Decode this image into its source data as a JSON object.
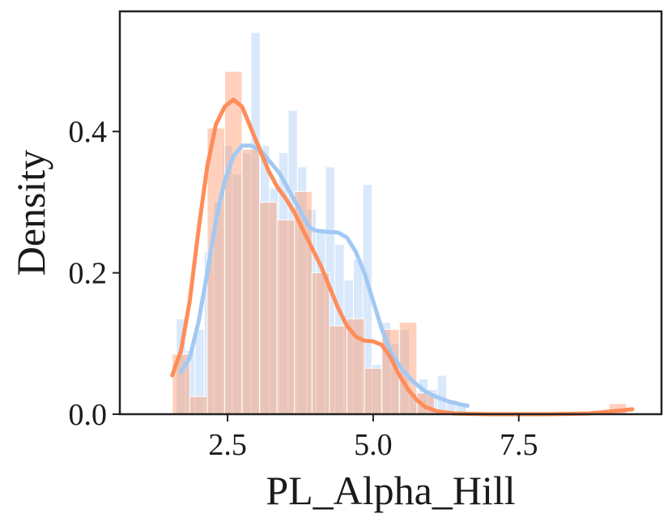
{
  "chart_data": {
    "type": "histogram",
    "title": "",
    "xlabel": "PL_Alpha_Hill",
    "ylabel": "Density",
    "xlim": [
      0.65,
      9.95
    ],
    "ylim": [
      0,
      0.57
    ],
    "xticks": [
      {
        "value": 2.5,
        "label": "2.5"
      },
      {
        "value": 5.0,
        "label": "5.0"
      },
      {
        "value": 7.5,
        "label": "7.5"
      }
    ],
    "yticks": [
      {
        "value": 0.0,
        "label": "0.0"
      },
      {
        "value": 0.2,
        "label": "0.2"
      },
      {
        "value": 0.4,
        "label": "0.4"
      }
    ],
    "grid": false,
    "legend": "none",
    "series": [
      {
        "color": "#a1c9f4",
        "bar_opacity": 0.4,
        "bins": [
          {
            "x0": 1.62,
            "x1": 1.78,
            "y": 0.135
          },
          {
            "x0": 1.78,
            "x1": 1.94,
            "y": 0.09
          },
          {
            "x0": 1.94,
            "x1": 2.1,
            "y": 0.12
          },
          {
            "x0": 2.1,
            "x1": 2.26,
            "y": 0.23
          },
          {
            "x0": 2.26,
            "x1": 2.42,
            "y": 0.3
          },
          {
            "x0": 2.42,
            "x1": 2.58,
            "y": 0.38
          },
          {
            "x0": 2.58,
            "x1": 2.74,
            "y": 0.34
          },
          {
            "x0": 2.74,
            "x1": 2.9,
            "y": 0.37
          },
          {
            "x0": 2.9,
            "x1": 3.06,
            "y": 0.54
          },
          {
            "x0": 3.06,
            "x1": 3.22,
            "y": 0.38
          },
          {
            "x0": 3.22,
            "x1": 3.38,
            "y": 0.32
          },
          {
            "x0": 3.38,
            "x1": 3.54,
            "y": 0.37
          },
          {
            "x0": 3.54,
            "x1": 3.7,
            "y": 0.43
          },
          {
            "x0": 3.7,
            "x1": 3.86,
            "y": 0.35
          },
          {
            "x0": 3.86,
            "x1": 4.02,
            "y": 0.29
          },
          {
            "x0": 4.02,
            "x1": 4.18,
            "y": 0.26
          },
          {
            "x0": 4.18,
            "x1": 4.34,
            "y": 0.35
          },
          {
            "x0": 4.34,
            "x1": 4.5,
            "y": 0.24
          },
          {
            "x0": 4.5,
            "x1": 4.66,
            "y": 0.19
          },
          {
            "x0": 4.66,
            "x1": 4.82,
            "y": 0.22
          },
          {
            "x0": 4.82,
            "x1": 4.98,
            "y": 0.325
          },
          {
            "x0": 4.98,
            "x1": 5.14,
            "y": 0.07
          },
          {
            "x0": 5.14,
            "x1": 5.3,
            "y": 0.13
          },
          {
            "x0": 5.3,
            "x1": 5.46,
            "y": 0.1
          },
          {
            "x0": 5.46,
            "x1": 5.62,
            "y": 0.12
          },
          {
            "x0": 5.62,
            "x1": 5.78,
            "y": 0.03
          },
          {
            "x0": 5.78,
            "x1": 5.94,
            "y": 0.05
          },
          {
            "x0": 5.94,
            "x1": 6.1,
            "y": 0.035
          },
          {
            "x0": 6.1,
            "x1": 6.26,
            "y": 0.055
          },
          {
            "x0": 6.26,
            "x1": 6.42,
            "y": 0.02
          },
          {
            "x0": 6.42,
            "x1": 6.6,
            "y": 0.015
          }
        ],
        "kde": [
          [
            1.7,
            0.06
          ],
          [
            1.85,
            0.08
          ],
          [
            2.0,
            0.13
          ],
          [
            2.15,
            0.2
          ],
          [
            2.3,
            0.275
          ],
          [
            2.45,
            0.33
          ],
          [
            2.6,
            0.365
          ],
          [
            2.75,
            0.38
          ],
          [
            2.9,
            0.38
          ],
          [
            3.0,
            0.376
          ],
          [
            3.1,
            0.37
          ],
          [
            3.2,
            0.36
          ],
          [
            3.3,
            0.35
          ],
          [
            3.4,
            0.34
          ],
          [
            3.5,
            0.325
          ],
          [
            3.6,
            0.31
          ],
          [
            3.7,
            0.295
          ],
          [
            3.8,
            0.28
          ],
          [
            3.9,
            0.265
          ],
          [
            4.0,
            0.26
          ],
          [
            4.2,
            0.258
          ],
          [
            4.4,
            0.257
          ],
          [
            4.55,
            0.25
          ],
          [
            4.7,
            0.23
          ],
          [
            4.85,
            0.2
          ],
          [
            5.0,
            0.16
          ],
          [
            5.15,
            0.12
          ],
          [
            5.3,
            0.088
          ],
          [
            5.5,
            0.063
          ],
          [
            5.7,
            0.045
          ],
          [
            5.9,
            0.032
          ],
          [
            6.1,
            0.024
          ],
          [
            6.3,
            0.018
          ],
          [
            6.5,
            0.014
          ],
          [
            6.62,
            0.012
          ]
        ]
      },
      {
        "color": "#ff8c5a",
        "bar_opacity": 0.4,
        "bins": [
          {
            "x0": 1.55,
            "x1": 1.85,
            "y": 0.085
          },
          {
            "x0": 1.85,
            "x1": 2.15,
            "y": 0.025
          },
          {
            "x0": 2.15,
            "x1": 2.45,
            "y": 0.405
          },
          {
            "x0": 2.45,
            "x1": 2.75,
            "y": 0.485
          },
          {
            "x0": 2.75,
            "x1": 3.05,
            "y": 0.375
          },
          {
            "x0": 3.05,
            "x1": 3.35,
            "y": 0.3
          },
          {
            "x0": 3.35,
            "x1": 3.65,
            "y": 0.275
          },
          {
            "x0": 3.65,
            "x1": 3.95,
            "y": 0.315
          },
          {
            "x0": 3.95,
            "x1": 4.25,
            "y": 0.2
          },
          {
            "x0": 4.25,
            "x1": 4.55,
            "y": 0.125
          },
          {
            "x0": 4.55,
            "x1": 4.85,
            "y": 0.135
          },
          {
            "x0": 4.85,
            "x1": 5.15,
            "y": 0.065
          },
          {
            "x0": 5.15,
            "x1": 5.45,
            "y": 0.12
          },
          {
            "x0": 5.45,
            "x1": 5.75,
            "y": 0.13
          },
          {
            "x0": 5.75,
            "x1": 6.05,
            "y": 0.03
          },
          {
            "x0": 9.05,
            "x1": 9.35,
            "y": 0.015
          }
        ],
        "kde": [
          [
            1.55,
            0.055
          ],
          [
            1.7,
            0.09
          ],
          [
            1.85,
            0.16
          ],
          [
            2.0,
            0.26
          ],
          [
            2.15,
            0.35
          ],
          [
            2.3,
            0.41
          ],
          [
            2.45,
            0.435
          ],
          [
            2.6,
            0.445
          ],
          [
            2.75,
            0.435
          ],
          [
            2.9,
            0.405
          ],
          [
            3.05,
            0.375
          ],
          [
            3.2,
            0.345
          ],
          [
            3.35,
            0.322
          ],
          [
            3.5,
            0.305
          ],
          [
            3.65,
            0.285
          ],
          [
            3.8,
            0.26
          ],
          [
            3.95,
            0.235
          ],
          [
            4.1,
            0.21
          ],
          [
            4.25,
            0.18
          ],
          [
            4.4,
            0.15
          ],
          [
            4.55,
            0.125
          ],
          [
            4.7,
            0.11
          ],
          [
            4.85,
            0.104
          ],
          [
            5.0,
            0.103
          ],
          [
            5.15,
            0.098
          ],
          [
            5.3,
            0.08
          ],
          [
            5.45,
            0.055
          ],
          [
            5.6,
            0.035
          ],
          [
            5.75,
            0.02
          ],
          [
            5.9,
            0.01
          ],
          [
            6.1,
            0.004
          ],
          [
            6.4,
            0.001
          ],
          [
            7.0,
            0.0
          ],
          [
            8.0,
            0.0
          ],
          [
            8.7,
            0.001
          ],
          [
            9.1,
            0.004
          ],
          [
            9.45,
            0.007
          ]
        ]
      }
    ]
  }
}
